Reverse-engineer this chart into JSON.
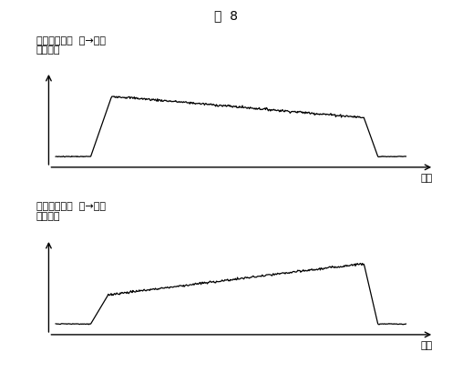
{
  "title": "図  8",
  "top_label1": "板厚変動周期  長→短時",
  "top_label2": "圧延速度",
  "bottom_label1": "板厚変動周期  短→長時",
  "bottom_label2": "圧延速度",
  "xlabel": "時間",
  "background_color": "#ffffff",
  "line_color": "#000000",
  "title_fontsize": 10,
  "label_fontsize": 8,
  "xlabel_fontsize": 8
}
